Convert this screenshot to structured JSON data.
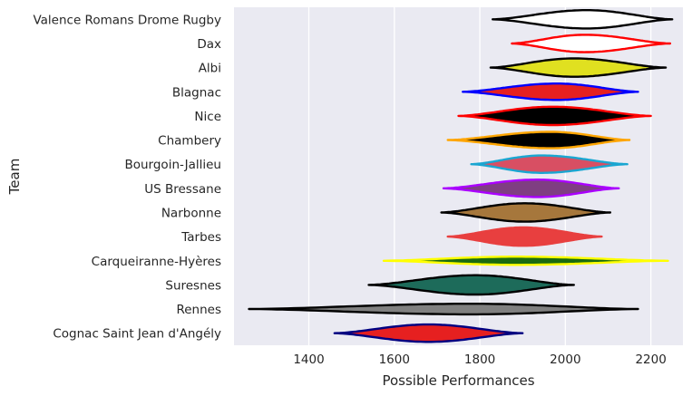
{
  "chart_data": {
    "type": "violin",
    "orientation": "horizontal",
    "xlabel": "Possible Performances",
    "ylabel": "Team",
    "xlim": [
      1225,
      2275
    ],
    "xticks": [
      1400,
      1600,
      1800,
      2000,
      2200
    ],
    "grid": true,
    "background": "#eaeaf2",
    "teams": [
      {
        "name": "Valence Romans Drome Rugby",
        "min": 1830,
        "max": 2250,
        "peak": 2050,
        "width": 0.38,
        "fill": "#ffffff",
        "edge": "#000000"
      },
      {
        "name": "Dax",
        "min": 1875,
        "max": 2245,
        "peak": 2045,
        "width": 0.36,
        "fill": "#ffffff",
        "edge": "#ff0000"
      },
      {
        "name": "Albi",
        "min": 1825,
        "max": 2235,
        "peak": 2020,
        "width": 0.38,
        "fill": "#e0e020",
        "edge": "#000000"
      },
      {
        "name": "Blagnac",
        "min": 1760,
        "max": 2170,
        "peak": 1980,
        "width": 0.34,
        "fill": "#e62020",
        "edge": "#0000ff"
      },
      {
        "name": "Nice",
        "min": 1750,
        "max": 2200,
        "peak": 1970,
        "width": 0.38,
        "fill": "#000000",
        "edge": "#ff0000"
      },
      {
        "name": "Chambery",
        "min": 1725,
        "max": 2150,
        "peak": 1965,
        "width": 0.34,
        "fill": "#000000",
        "edge": "#ffa500"
      },
      {
        "name": "Bourgoin-Jallieu",
        "min": 1780,
        "max": 2145,
        "peak": 1945,
        "width": 0.36,
        "fill": "#d84f63",
        "edge": "#1aa6d1"
      },
      {
        "name": "US Bressane",
        "min": 1715,
        "max": 2125,
        "peak": 1935,
        "width": 0.36,
        "fill": "#7f3e82",
        "edge": "#aa00ff"
      },
      {
        "name": "Narbonne",
        "min": 1710,
        "max": 2105,
        "peak": 1905,
        "width": 0.38,
        "fill": "#a6773c",
        "edge": "#000000"
      },
      {
        "name": "Tarbes",
        "min": 1725,
        "max": 2085,
        "peak": 1900,
        "width": 0.38,
        "fill": "#e83f3f",
        "edge": "#e83f3f"
      },
      {
        "name": "Carqueiranne-Hyères",
        "min": 1575,
        "max": 2240,
        "peak": 1885,
        "width": 0.17,
        "fill": "#1a6b10",
        "edge": "#ffff00"
      },
      {
        "name": "Suresnes",
        "min": 1540,
        "max": 2020,
        "peak": 1790,
        "width": 0.4,
        "fill": "#1d6b5a",
        "edge": "#000000"
      },
      {
        "name": "Rennes",
        "min": 1260,
        "max": 2170,
        "peak": 1780,
        "width": 0.22,
        "fill": "#808080",
        "edge": "#000000"
      },
      {
        "name": "Cognac Saint Jean d'Angély",
        "min": 1460,
        "max": 1900,
        "peak": 1680,
        "width": 0.36,
        "fill": "#e62020",
        "edge": "#000080"
      }
    ]
  }
}
